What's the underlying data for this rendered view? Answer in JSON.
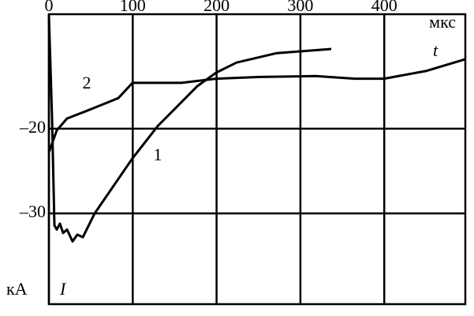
{
  "chart_data": {
    "type": "line",
    "x_label": "мкс",
    "x_symbol": "t",
    "y_label": "кА",
    "y_symbol": "I",
    "xlim": [
      0,
      496.7
    ],
    "xticks": [
      0,
      100,
      200,
      300,
      400
    ],
    "ylim": [
      -40.7,
      -6.5
    ],
    "yticks": [
      {
        "value": -20,
        "label": "–20"
      },
      {
        "value": -30,
        "label": "–30"
      }
    ],
    "grid": true,
    "series": [
      {
        "name": "1",
        "color": "#000000",
        "x": [
          0,
          3.8,
          6.6,
          9.4,
          13.2,
          16.9,
          21.6,
          28.2,
          33.9,
          40.5,
          54.6,
          99.7,
          129.8,
          176.9,
          199.4,
          223.9,
          270.9,
          336.8
        ],
        "values": [
          -6.6,
          -18.8,
          -31.4,
          -31.9,
          -31.2,
          -32.3,
          -31.9,
          -33.3,
          -32.5,
          -32.8,
          -30,
          -23.5,
          -19.7,
          -15,
          -13.4,
          -12.2,
          -11.1,
          -10.6
        ]
      },
      {
        "name": "2",
        "color": "#000000",
        "x": [
          0,
          9.4,
          21.6,
          45.2,
          82.8,
          99.7,
          158,
          199.4,
          252.1,
          318,
          365,
          399.8,
          449.7,
          496.7
        ],
        "values": [
          -22.8,
          -20.2,
          -18.8,
          -17.9,
          -16.4,
          -14.6,
          -14.6,
          -14.1,
          -13.9,
          -13.8,
          -14.1,
          -14.1,
          -13.2,
          -11.8
        ]
      }
    ]
  }
}
